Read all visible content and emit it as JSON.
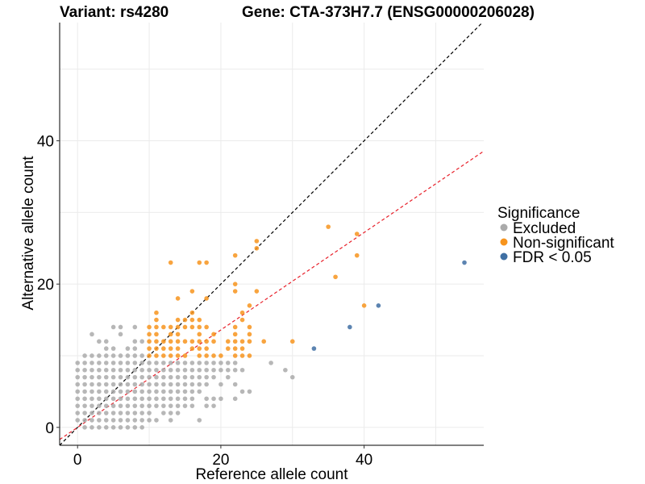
{
  "chart_data": {
    "type": "scatter",
    "title_left": "Variant: rs4280",
    "title_right": "Gene: CTA-373H7.7 (ENSG00000206028)",
    "xlabel": "Reference allele count",
    "ylabel": "Alternative allele count",
    "xlim": [
      -2.5,
      56.7
    ],
    "ylim": [
      -2.5,
      56.5
    ],
    "x_ticks": [
      0,
      20,
      40
    ],
    "y_ticks": [
      0,
      20,
      40
    ],
    "x_minor_grid": [
      10,
      30,
      50
    ],
    "y_minor_grid": [
      10,
      30,
      50
    ],
    "grid": true,
    "reference_lines": [
      {
        "name": "identity",
        "slope": 1.0,
        "intercept": 0,
        "color": "#000000",
        "style": "dashed"
      },
      {
        "name": "fit",
        "slope": 0.68,
        "intercept": 0,
        "color": "#e8202a",
        "style": "dashed"
      }
    ],
    "legend": {
      "title": "Significance",
      "position": "right",
      "entries": [
        {
          "label": "Excluded",
          "color": "#aaaaaa"
        },
        {
          "label": "Non-significant",
          "color": "#f7941d"
        },
        {
          "label": "FDR < 0.05",
          "color": "#3f6fa3"
        }
      ]
    },
    "series": [
      {
        "name": "Excluded",
        "color": "#aaaaaa",
        "points": [
          [
            1,
            0
          ],
          [
            2,
            0
          ],
          [
            3,
            0
          ],
          [
            4,
            0
          ],
          [
            5,
            0
          ],
          [
            6,
            0
          ],
          [
            7,
            0
          ],
          [
            8,
            0
          ],
          [
            9,
            0
          ],
          [
            0,
            1
          ],
          [
            1,
            1
          ],
          [
            2,
            1
          ],
          [
            3,
            1
          ],
          [
            4,
            1
          ],
          [
            5,
            1
          ],
          [
            6,
            1
          ],
          [
            7,
            1
          ],
          [
            8,
            1
          ],
          [
            9,
            1
          ],
          [
            10,
            1
          ],
          [
            11,
            1
          ],
          [
            13,
            1
          ],
          [
            17,
            1
          ],
          [
            0,
            2
          ],
          [
            1,
            2
          ],
          [
            2,
            2
          ],
          [
            3,
            2
          ],
          [
            4,
            2
          ],
          [
            5,
            2
          ],
          [
            6,
            2
          ],
          [
            7,
            2
          ],
          [
            8,
            2
          ],
          [
            9,
            2
          ],
          [
            10,
            2
          ],
          [
            12,
            2
          ],
          [
            13,
            2
          ],
          [
            14,
            2
          ],
          [
            0,
            3
          ],
          [
            1,
            3
          ],
          [
            2,
            3
          ],
          [
            3,
            3
          ],
          [
            4,
            3
          ],
          [
            5,
            3
          ],
          [
            6,
            3
          ],
          [
            7,
            3
          ],
          [
            8,
            3
          ],
          [
            9,
            3
          ],
          [
            10,
            3
          ],
          [
            11,
            3
          ],
          [
            12,
            3
          ],
          [
            13,
            3
          ],
          [
            14,
            3
          ],
          [
            15,
            3
          ],
          [
            16,
            3
          ],
          [
            18,
            3
          ],
          [
            19,
            3
          ],
          [
            0,
            4
          ],
          [
            1,
            4
          ],
          [
            2,
            4
          ],
          [
            3,
            4
          ],
          [
            4,
            4
          ],
          [
            5,
            4
          ],
          [
            6,
            4
          ],
          [
            7,
            4
          ],
          [
            8,
            4
          ],
          [
            9,
            4
          ],
          [
            10,
            4
          ],
          [
            11,
            4
          ],
          [
            12,
            4
          ],
          [
            13,
            4
          ],
          [
            14,
            4
          ],
          [
            15,
            4
          ],
          [
            16,
            4
          ],
          [
            18,
            4
          ],
          [
            19,
            4
          ],
          [
            20,
            4
          ],
          [
            22,
            4
          ],
          [
            0,
            5
          ],
          [
            1,
            5
          ],
          [
            2,
            5
          ],
          [
            3,
            5
          ],
          [
            4,
            5
          ],
          [
            5,
            5
          ],
          [
            6,
            5
          ],
          [
            7,
            5
          ],
          [
            8,
            5
          ],
          [
            9,
            5
          ],
          [
            10,
            5
          ],
          [
            11,
            5
          ],
          [
            12,
            5
          ],
          [
            13,
            5
          ],
          [
            14,
            5
          ],
          [
            15,
            5
          ],
          [
            16,
            5
          ],
          [
            17,
            5
          ],
          [
            23,
            5
          ],
          [
            24,
            5
          ],
          [
            0,
            6
          ],
          [
            1,
            6
          ],
          [
            2,
            6
          ],
          [
            3,
            6
          ],
          [
            4,
            6
          ],
          [
            5,
            6
          ],
          [
            6,
            6
          ],
          [
            7,
            6
          ],
          [
            8,
            6
          ],
          [
            9,
            6
          ],
          [
            10,
            6
          ],
          [
            11,
            6
          ],
          [
            12,
            6
          ],
          [
            13,
            6
          ],
          [
            14,
            6
          ],
          [
            15,
            6
          ],
          [
            16,
            6
          ],
          [
            17,
            6
          ],
          [
            18,
            6
          ],
          [
            20,
            6
          ],
          [
            22,
            6
          ],
          [
            0,
            7
          ],
          [
            1,
            7
          ],
          [
            2,
            7
          ],
          [
            3,
            7
          ],
          [
            4,
            7
          ],
          [
            5,
            7
          ],
          [
            6,
            7
          ],
          [
            7,
            7
          ],
          [
            8,
            7
          ],
          [
            9,
            7
          ],
          [
            10,
            7
          ],
          [
            11,
            7
          ],
          [
            12,
            7
          ],
          [
            13,
            7
          ],
          [
            14,
            7
          ],
          [
            15,
            7
          ],
          [
            16,
            7
          ],
          [
            17,
            7
          ],
          [
            18,
            7
          ],
          [
            19,
            7
          ],
          [
            21,
            7
          ],
          [
            30,
            7
          ],
          [
            0,
            8
          ],
          [
            1,
            8
          ],
          [
            2,
            8
          ],
          [
            3,
            8
          ],
          [
            4,
            8
          ],
          [
            5,
            8
          ],
          [
            6,
            8
          ],
          [
            7,
            8
          ],
          [
            8,
            8
          ],
          [
            9,
            8
          ],
          [
            10,
            8
          ],
          [
            11,
            8
          ],
          [
            12,
            8
          ],
          [
            13,
            8
          ],
          [
            14,
            8
          ],
          [
            15,
            8
          ],
          [
            16,
            8
          ],
          [
            17,
            8
          ],
          [
            18,
            8
          ],
          [
            19,
            8
          ],
          [
            20,
            8
          ],
          [
            21,
            8
          ],
          [
            22,
            8
          ],
          [
            23,
            8
          ],
          [
            29,
            8
          ],
          [
            0,
            9
          ],
          [
            1,
            9
          ],
          [
            2,
            9
          ],
          [
            3,
            9
          ],
          [
            4,
            9
          ],
          [
            5,
            9
          ],
          [
            6,
            9
          ],
          [
            7,
            9
          ],
          [
            8,
            9
          ],
          [
            9,
            9
          ],
          [
            10,
            9
          ],
          [
            11,
            9
          ],
          [
            12,
            9
          ],
          [
            13,
            9
          ],
          [
            14,
            9
          ],
          [
            15,
            9
          ],
          [
            16,
            9
          ],
          [
            17,
            9
          ],
          [
            18,
            9
          ],
          [
            19,
            9
          ],
          [
            20,
            9
          ],
          [
            21,
            9
          ],
          [
            22,
            9
          ],
          [
            27,
            9
          ],
          [
            1,
            10
          ],
          [
            2,
            10
          ],
          [
            3,
            10
          ],
          [
            4,
            10
          ],
          [
            5,
            10
          ],
          [
            6,
            10
          ],
          [
            7,
            10
          ],
          [
            8,
            10
          ],
          [
            9,
            10
          ],
          [
            4,
            11
          ],
          [
            5,
            11
          ],
          [
            7,
            11
          ],
          [
            8,
            11
          ],
          [
            3,
            12
          ],
          [
            4,
            12
          ],
          [
            8,
            12
          ],
          [
            9,
            12
          ],
          [
            2,
            13
          ],
          [
            6,
            13
          ],
          [
            5,
            14
          ],
          [
            6,
            14
          ],
          [
            8,
            14
          ]
        ]
      },
      {
        "name": "Non-significant",
        "color": "#f7941d",
        "points": [
          [
            10,
            10
          ],
          [
            11,
            10
          ],
          [
            12,
            10
          ],
          [
            13,
            10
          ],
          [
            14,
            10
          ],
          [
            15,
            10
          ],
          [
            17,
            10
          ],
          [
            18,
            10
          ],
          [
            19,
            10
          ],
          [
            22,
            10
          ],
          [
            23,
            10
          ],
          [
            24,
            10
          ],
          [
            20,
            10
          ],
          [
            10,
            11
          ],
          [
            11,
            11
          ],
          [
            12,
            11
          ],
          [
            13,
            11
          ],
          [
            14,
            11
          ],
          [
            16,
            11
          ],
          [
            17,
            11
          ],
          [
            18,
            11
          ],
          [
            21,
            11
          ],
          [
            22,
            11
          ],
          [
            23,
            11
          ],
          [
            10,
            12
          ],
          [
            11,
            12
          ],
          [
            12,
            12
          ],
          [
            13,
            12
          ],
          [
            14,
            12
          ],
          [
            15,
            12
          ],
          [
            16,
            12
          ],
          [
            17,
            12
          ],
          [
            18,
            12
          ],
          [
            19,
            12
          ],
          [
            21,
            12
          ],
          [
            22,
            12
          ],
          [
            23,
            12
          ],
          [
            24,
            12
          ],
          [
            26,
            12
          ],
          [
            30,
            12
          ],
          [
            10,
            13
          ],
          [
            11,
            13
          ],
          [
            13,
            13
          ],
          [
            14,
            13
          ],
          [
            17,
            13
          ],
          [
            19,
            13
          ],
          [
            22,
            13
          ],
          [
            24,
            13
          ],
          [
            10,
            14
          ],
          [
            11,
            14
          ],
          [
            12,
            14
          ],
          [
            13,
            14
          ],
          [
            14,
            14
          ],
          [
            15,
            14
          ],
          [
            16,
            14
          ],
          [
            17,
            14
          ],
          [
            18,
            14
          ],
          [
            22,
            14
          ],
          [
            24,
            14
          ],
          [
            11,
            15
          ],
          [
            14,
            15
          ],
          [
            15,
            15
          ],
          [
            16,
            15
          ],
          [
            17,
            15
          ],
          [
            23,
            15
          ],
          [
            11,
            16
          ],
          [
            16,
            16
          ],
          [
            23,
            16
          ],
          [
            24,
            17
          ],
          [
            40,
            17
          ],
          [
            14,
            18
          ],
          [
            18,
            18
          ],
          [
            16,
            19
          ],
          [
            22,
            19
          ],
          [
            25,
            19
          ],
          [
            22,
            20
          ],
          [
            36,
            21
          ],
          [
            13,
            23
          ],
          [
            17,
            23
          ],
          [
            18,
            23
          ],
          [
            22,
            24
          ],
          [
            39,
            24
          ],
          [
            25,
            25
          ],
          [
            25,
            26
          ],
          [
            39,
            27
          ],
          [
            35,
            28
          ]
        ]
      },
      {
        "name": "FDR < 0.05",
        "color": "#3f6fa3",
        "points": [
          [
            33,
            11
          ],
          [
            38,
            14
          ],
          [
            42,
            17
          ],
          [
            54,
            23
          ]
        ]
      }
    ]
  }
}
